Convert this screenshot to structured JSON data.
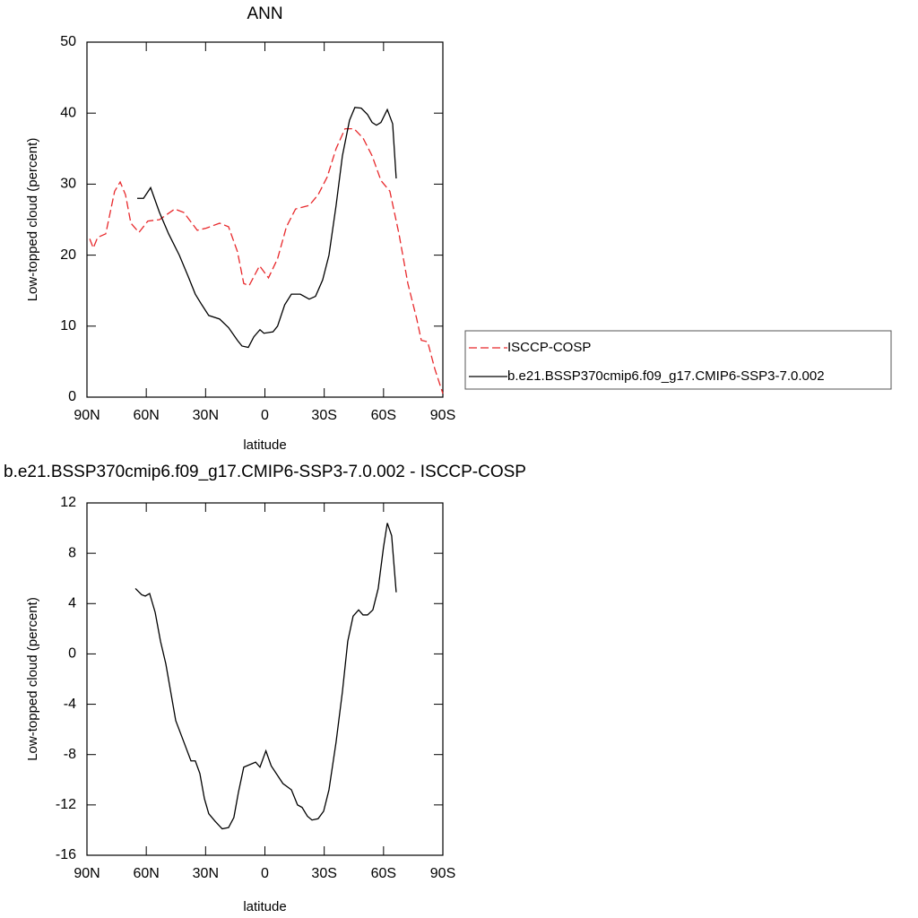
{
  "chart_data": [
    {
      "type": "line",
      "title": "ANN",
      "xlabel": "latitude",
      "ylabel": "Low-topped cloud (percent)",
      "xlim": [
        90,
        -90
      ],
      "xticks": [
        {
          "value": 90,
          "label": "90N"
        },
        {
          "value": 60,
          "label": "60N"
        },
        {
          "value": 30,
          "label": "30N"
        },
        0,
        {
          "value": -30,
          "label": "30S"
        },
        {
          "value": -60,
          "label": "60S"
        },
        {
          "value": -90,
          "label": "90S"
        }
      ],
      "ylim": [
        0,
        50
      ],
      "yticks": [
        0,
        10,
        20,
        30,
        40,
        50
      ],
      "legend": "outside-right",
      "series": [
        {
          "name": "ISCCP-COSP",
          "color": "#e8282b",
          "dash": "dashed",
          "x": [
            88.6,
            86.8,
            84.6,
            80.5,
            76,
            73.2,
            70.5,
            67.8,
            63.7,
            59.2,
            53.3,
            45.6,
            41,
            34.2,
            29.7,
            22.9,
            18.4,
            13.9,
            10.7,
            8,
            2.7,
            -1.8,
            -6.4,
            -10.9,
            -15.5,
            -22.4,
            -26.9,
            -31.5,
            -36,
            -40.5,
            -45.1,
            -49.6,
            -54.2,
            -58.7,
            -63.2,
            -67.8,
            -72.3,
            -76.8,
            -79.1,
            -82.3,
            -85.9,
            -90
          ],
          "values": [
            22.3,
            21,
            22.5,
            23,
            29,
            30.3,
            28.5,
            24.5,
            23.2,
            24.8,
            25,
            26.5,
            26,
            23.5,
            23.8,
            24.5,
            24,
            20.5,
            16,
            15.7,
            18.5,
            16.8,
            19.5,
            24,
            26.5,
            27,
            28.5,
            31,
            35,
            37.8,
            37.8,
            36.5,
            34,
            30.5,
            29,
            23,
            16,
            11,
            8,
            7.8,
            4,
            0.5
          ]
        },
        {
          "name": "b.e21.BSSP370cmip6.f09_g17.CMIP6-SSP3-7.0.002",
          "color": "#000000",
          "dash": "solid",
          "x": [
            64.6,
            61.4,
            57.8,
            53.3,
            48.7,
            43.3,
            38.8,
            35.2,
            31.9,
            28.4,
            22.9,
            18.4,
            13.9,
            11.6,
            8.4,
            5.6,
            2.5,
            0.5,
            -4.1,
            -6.4,
            -10,
            -13.4,
            -17.9,
            -22.4,
            -25.6,
            -29.2,
            -32.4,
            -36,
            -39.2,
            -42.8,
            -45.5,
            -48.7,
            -51.9,
            -54.2,
            -56.4,
            -58.7,
            -61.9,
            -64.6,
            -66.4
          ],
          "values": [
            28,
            28,
            29.5,
            26,
            23,
            20,
            17,
            14.5,
            13,
            11.5,
            11,
            9.8,
            8,
            7.2,
            7,
            8.5,
            9.5,
            9,
            9.2,
            10,
            13,
            14.5,
            14.5,
            13.8,
            14.2,
            16.5,
            20,
            27,
            34,
            39,
            40.8,
            40.7,
            39.8,
            38.7,
            38.3,
            38.7,
            40.5,
            38.5,
            30.8
          ]
        }
      ]
    },
    {
      "type": "line",
      "title": "b.e21.BSSP370cmip6.f09_g17.CMIP6-SSP3-7.0.002 - ISCCP-COSP",
      "xlabel": "latitude",
      "ylabel": "Low-topped cloud (percent)",
      "xlim": [
        90,
        -90
      ],
      "xticks": [
        {
          "value": 90,
          "label": "90N"
        },
        {
          "value": 60,
          "label": "60N"
        },
        {
          "value": 30,
          "label": "30N"
        },
        0,
        {
          "value": -30,
          "label": "30S"
        },
        {
          "value": -60,
          "label": "60S"
        },
        {
          "value": -90,
          "label": "90S"
        }
      ],
      "ylim": [
        -16,
        12
      ],
      "yticks": [
        -16,
        -12,
        -8,
        -4,
        0,
        4,
        8,
        12
      ],
      "series": [
        {
          "color": "#000000",
          "dash": "solid",
          "x": [
            65.5,
            62.3,
            60.5,
            58.3,
            55.5,
            52.8,
            50.1,
            45.1,
            41,
            37.4,
            35.2,
            32.9,
            30.6,
            28.4,
            25.2,
            21.6,
            18.4,
            15.7,
            13.4,
            10.7,
            4.7,
            2.5,
            -0.5,
            -3.2,
            -9.1,
            -13.4,
            -16.5,
            -18.8,
            -21.5,
            -23.8,
            -26.9,
            -29.7,
            -32.4,
            -36,
            -39.2,
            -41.9,
            -44.6,
            -47.4,
            -49.6,
            -51.9,
            -54.6,
            -57.3,
            -60,
            -61.9,
            -64.1,
            -66.4
          ],
          "values": [
            5.2,
            4.7,
            4.6,
            4.8,
            3.3,
            1,
            -0.8,
            -5.3,
            -7,
            -8.5,
            -8.5,
            -9.5,
            -11.5,
            -12.7,
            -13.3,
            -13.9,
            -13.8,
            -13,
            -11,
            -9,
            -8.6,
            -9,
            -7.7,
            -8.9,
            -10.3,
            -10.8,
            -12,
            -12.2,
            -12.9,
            -13.2,
            -13.1,
            -12.5,
            -10.8,
            -7,
            -3,
            1,
            3,
            3.5,
            3.1,
            3.1,
            3.5,
            5.2,
            8.5,
            10.4,
            9.4,
            4.9
          ]
        }
      ]
    }
  ]
}
